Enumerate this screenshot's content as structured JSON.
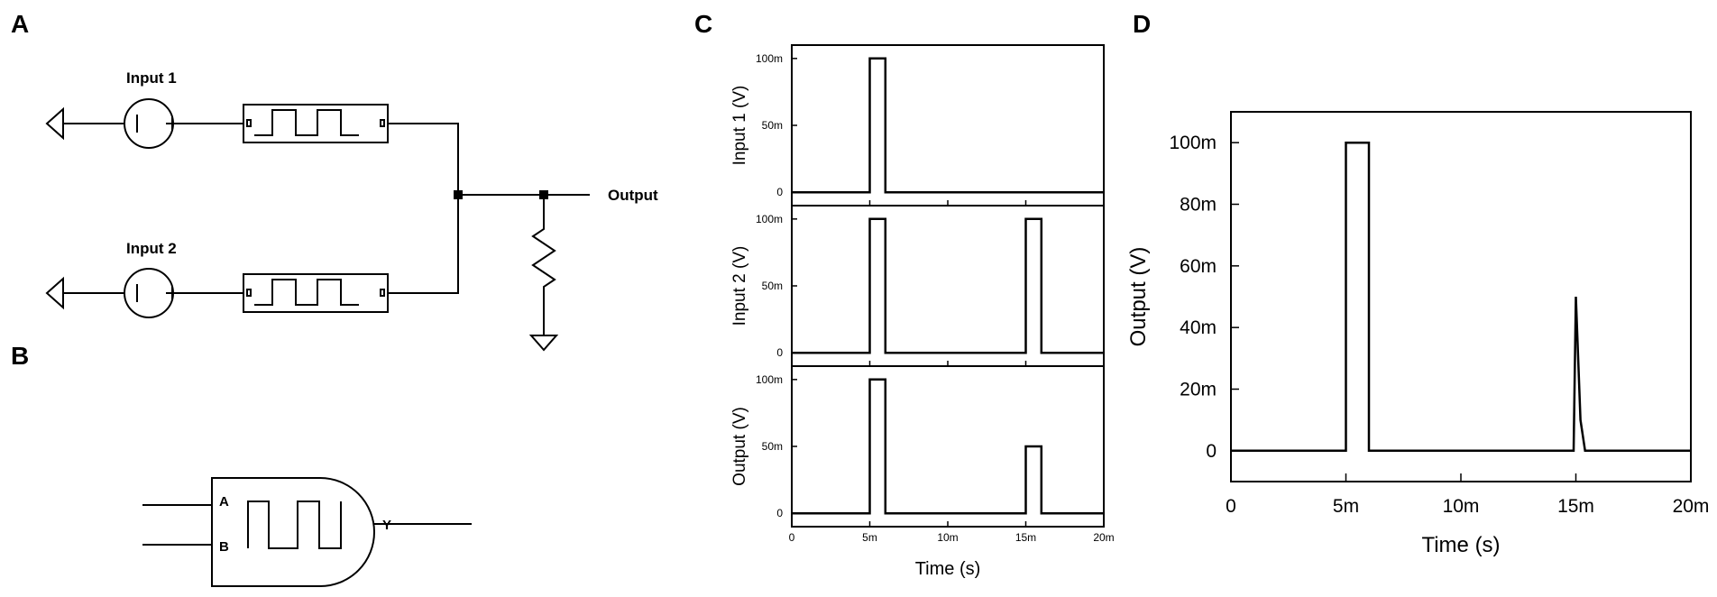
{
  "panels": {
    "a": "A",
    "b": "B",
    "c": "C",
    "d": "D"
  },
  "circuit": {
    "input1": "Input 1",
    "input2": "Input 2",
    "output": "Output"
  },
  "gate": {
    "a": "A",
    "b": "B",
    "y": "Y"
  },
  "chart_data": [
    {
      "type": "line",
      "panel": "C",
      "ylabel": "Input 1 (V)",
      "xlim": [
        0,
        0.02
      ],
      "ylim": [
        -0.01,
        0.11
      ],
      "yticks": [
        0,
        0.05,
        0.1
      ],
      "ytick_labels": [
        "0",
        "50m",
        "100m"
      ],
      "x": [
        0,
        0.005,
        0.005,
        0.006,
        0.006,
        0.02
      ],
      "y": [
        0,
        0,
        0.1,
        0.1,
        0,
        0
      ]
    },
    {
      "type": "line",
      "panel": "C",
      "ylabel": "Input 2 (V)",
      "xlim": [
        0,
        0.02
      ],
      "ylim": [
        -0.01,
        0.11
      ],
      "yticks": [
        0,
        0.05,
        0.1
      ],
      "ytick_labels": [
        "0",
        "50m",
        "100m"
      ],
      "x": [
        0,
        0.005,
        0.005,
        0.006,
        0.006,
        0.015,
        0.015,
        0.016,
        0.016,
        0.02
      ],
      "y": [
        0,
        0,
        0.1,
        0.1,
        0,
        0,
        0.1,
        0.1,
        0,
        0
      ]
    },
    {
      "type": "line",
      "panel": "C",
      "ylabel": "Output (V)",
      "xlabel": "Time (s)",
      "xlim": [
        0,
        0.02
      ],
      "ylim": [
        -0.01,
        0.11
      ],
      "xticks": [
        0,
        0.005,
        0.01,
        0.015,
        0.02
      ],
      "xtick_labels": [
        "0",
        "5m",
        "10m",
        "15m",
        "20m"
      ],
      "yticks": [
        0,
        0.05,
        0.1
      ],
      "ytick_labels": [
        "0",
        "50m",
        "100m"
      ],
      "x": [
        0,
        0.005,
        0.005,
        0.006,
        0.006,
        0.015,
        0.015,
        0.016,
        0.016,
        0.02
      ],
      "y": [
        0,
        0,
        0.1,
        0.1,
        0,
        0,
        0.05,
        0.05,
        0,
        0
      ]
    },
    {
      "type": "line",
      "panel": "D",
      "ylabel": "Output (V)",
      "xlabel": "Time (s)",
      "xlim": [
        0,
        0.02
      ],
      "ylim": [
        -0.01,
        0.11
      ],
      "xticks": [
        0,
        0.005,
        0.01,
        0.015,
        0.02
      ],
      "xtick_labels": [
        "0",
        "5m",
        "10m",
        "15m",
        "20m"
      ],
      "yticks": [
        0,
        0.02,
        0.04,
        0.06,
        0.08,
        0.1
      ],
      "ytick_labels": [
        "0",
        "20m",
        "40m",
        "60m",
        "80m",
        "100m"
      ],
      "x": [
        0,
        0.005,
        0.005,
        0.006,
        0.006,
        0.0149,
        0.015,
        0.0152,
        0.0154,
        0.02
      ],
      "y": [
        0,
        0,
        0.1,
        0.1,
        0,
        0,
        0.05,
        0.01,
        0,
        0
      ]
    }
  ]
}
